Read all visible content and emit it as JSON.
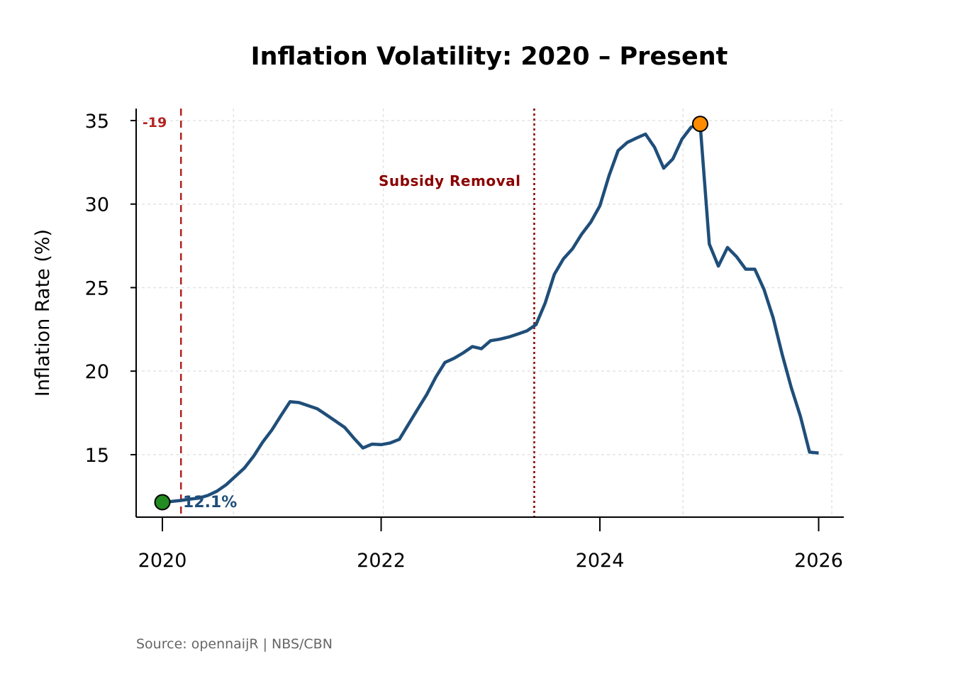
{
  "chart_data": {
    "type": "line",
    "title": "Inflation Volatility: 2020 – Present",
    "xlabel": "",
    "ylabel": "Inflation Rate (%)",
    "source": "Source: opennaijR | NBS/CBN",
    "xlim": [
      2019.76,
      2026.23
    ],
    "ylim": [
      11.26,
      35.72
    ],
    "x_ticks": [
      2020,
      2022,
      2024,
      2026
    ],
    "x_tick_labels": [
      "2020",
      "2022",
      "2024",
      "2026"
    ],
    "y_ticks": [
      15,
      20,
      25,
      30,
      35
    ],
    "y_tick_labels": [
      "15",
      "20",
      "25",
      "30",
      "35"
    ],
    "grid": true,
    "grid_x": [
      2020.65,
      2022.02,
      2023.39,
      2024.76,
      2026.12
    ],
    "series": [
      {
        "name": "Inflation Rate",
        "color": "#1f4e79",
        "start": "2020-01",
        "frequency": "monthly",
        "values": [
          12.15,
          12.2,
          12.26,
          12.34,
          12.4,
          12.56,
          12.82,
          13.2,
          13.7,
          14.2,
          14.9,
          15.75,
          16.47,
          17.33,
          18.17,
          18.12,
          17.93,
          17.75,
          17.38,
          17.01,
          16.63,
          15.99,
          15.4,
          15.63,
          15.6,
          15.7,
          15.92,
          16.82,
          17.71,
          18.6,
          19.64,
          20.52,
          20.77,
          21.09,
          21.47,
          21.34,
          21.82,
          21.91,
          22.04,
          22.22,
          22.41,
          22.79,
          24.08,
          25.8,
          26.72,
          27.33,
          28.2,
          28.92,
          29.9,
          31.7,
          33.2,
          33.69,
          33.95,
          34.19,
          33.4,
          32.15,
          32.7,
          33.88,
          34.6,
          34.8,
          27.61,
          26.29,
          27.4,
          26.85,
          26.1,
          26.1,
          24.9,
          23.2,
          21.0,
          19.0,
          17.3,
          15.15,
          15.1
        ]
      }
    ],
    "markers": [
      {
        "name": "start",
        "x": 2020.0,
        "y": 12.15,
        "color": "#228b22",
        "label": "12.1%",
        "label_color": "#1f4e79"
      },
      {
        "name": "peak",
        "x": 2024.917,
        "y": 34.8,
        "color": "#ff8c00"
      }
    ],
    "events": [
      {
        "name": "covid",
        "x": 2020.17,
        "label": "-19",
        "color": "#b22222",
        "style": "dashed"
      },
      {
        "name": "subsidy-removal",
        "x": 2023.4,
        "label": "Subsidy Removal",
        "color": "#8b0000",
        "style": "dotted"
      }
    ]
  }
}
